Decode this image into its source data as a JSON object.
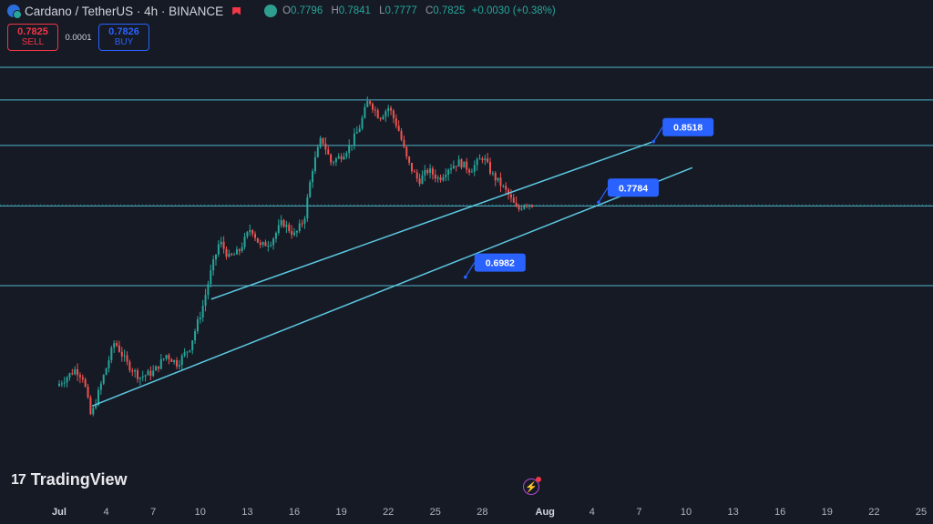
{
  "header": {
    "symbol_title": "Cardano / TetherUS · 4h · BINANCE",
    "ohlc": {
      "open_label": "O",
      "open": "0.7796",
      "high_label": "H",
      "high": "0.7841",
      "low_label": "L",
      "low": "0.7777",
      "close_label": "C",
      "close": "0.7825",
      "change": "+0.0030 (+0.38%)"
    }
  },
  "trade": {
    "sell_price": "0.7825",
    "sell_label": "SELL",
    "spread": "0.0001",
    "buy_price": "0.7826",
    "buy_label": "BUY"
  },
  "logo": {
    "mark": "17",
    "text": "TradingView"
  },
  "icons": [
    "coin-icon",
    "status-flag-icon",
    "visibility-icon",
    "flash-icon"
  ],
  "colors": {
    "background": "#161a25",
    "up": "#26a69a",
    "down": "#ef5350",
    "levels": "#4fb5c9",
    "trendlines": "#5cc8e0",
    "label": "#2962ff",
    "text": "#d1d4dc"
  },
  "chart_data": {
    "type": "candlestick",
    "y_range": [
      0.57,
      0.97
    ],
    "price_levels": [
      0.955,
      0.914,
      0.857,
      0.781,
      0.681
    ],
    "current_price_line": 0.7825,
    "x_ticks": [
      {
        "day": 1,
        "label": "Jul"
      },
      {
        "day": 4,
        "label": "4"
      },
      {
        "day": 7,
        "label": "7"
      },
      {
        "day": 10,
        "label": "10"
      },
      {
        "day": 13,
        "label": "13"
      },
      {
        "day": 16,
        "label": "16"
      },
      {
        "day": 19,
        "label": "19"
      },
      {
        "day": 22,
        "label": "22"
      },
      {
        "day": 25,
        "label": "25"
      },
      {
        "day": 28,
        "label": "28"
      },
      {
        "day": 32,
        "label": "Aug"
      },
      {
        "day": 35,
        "label": "4"
      },
      {
        "day": 38,
        "label": "7"
      },
      {
        "day": 41,
        "label": "10"
      },
      {
        "day": 44,
        "label": "13"
      },
      {
        "day": 47,
        "label": "16"
      },
      {
        "day": 50,
        "label": "19"
      },
      {
        "day": 53,
        "label": "22"
      },
      {
        "day": 56,
        "label": "25"
      }
    ],
    "trendlines": [
      {
        "from": [
          10.7,
          0.664
        ],
        "to": [
          38.8,
          0.861
        ]
      },
      {
        "from": [
          3.1,
          0.53
        ],
        "to": [
          41.4,
          0.829
        ]
      }
    ],
    "annotations": [
      {
        "label": "0.8518",
        "day": 39.5,
        "price": 0.88
      },
      {
        "label": "0.7784",
        "day": 36.0,
        "price": 0.804
      },
      {
        "label": "0.6982",
        "day": 27.5,
        "price": 0.71
      }
    ],
    "key_points": [
      [
        1.0,
        0.555
      ],
      [
        2.2,
        0.576
      ],
      [
        2.7,
        0.566
      ],
      [
        3.2,
        0.516
      ],
      [
        3.8,
        0.555
      ],
      [
        4.7,
        0.611
      ],
      [
        5.5,
        0.583
      ],
      [
        6.3,
        0.566
      ],
      [
        7.2,
        0.573
      ],
      [
        8.0,
        0.594
      ],
      [
        8.7,
        0.583
      ],
      [
        9.5,
        0.604
      ],
      [
        10.3,
        0.653
      ],
      [
        10.8,
        0.695
      ],
      [
        11.4,
        0.737
      ],
      [
        12.0,
        0.716
      ],
      [
        12.6,
        0.723
      ],
      [
        13.4,
        0.754
      ],
      [
        14.0,
        0.73
      ],
      [
        14.7,
        0.737
      ],
      [
        15.4,
        0.761
      ],
      [
        16.2,
        0.744
      ],
      [
        16.8,
        0.765
      ],
      [
        17.3,
        0.826
      ],
      [
        17.9,
        0.867
      ],
      [
        18.5,
        0.836
      ],
      [
        19.1,
        0.843
      ],
      [
        19.7,
        0.856
      ],
      [
        20.3,
        0.878
      ],
      [
        20.9,
        0.915
      ],
      [
        21.6,
        0.892
      ],
      [
        22.2,
        0.905
      ],
      [
        22.8,
        0.878
      ],
      [
        23.4,
        0.836
      ],
      [
        24.1,
        0.812
      ],
      [
        24.7,
        0.826
      ],
      [
        25.4,
        0.815
      ],
      [
        26.0,
        0.829
      ],
      [
        26.7,
        0.836
      ],
      [
        27.4,
        0.826
      ],
      [
        28.2,
        0.843
      ],
      [
        28.8,
        0.82
      ],
      [
        29.3,
        0.809
      ],
      [
        29.8,
        0.796
      ],
      [
        30.4,
        0.775
      ],
      [
        30.9,
        0.786
      ],
      [
        31.3,
        0.783
      ]
    ]
  }
}
